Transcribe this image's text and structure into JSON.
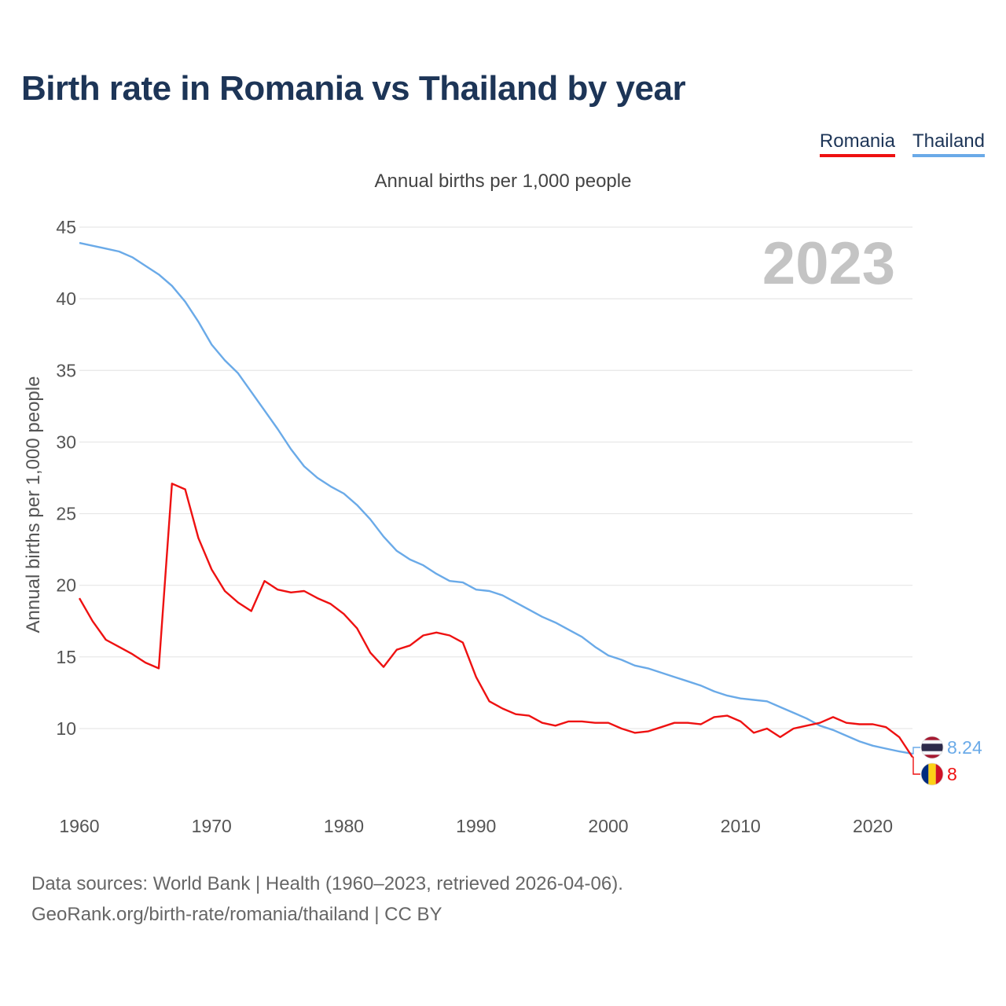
{
  "header": {
    "title": "Birth rate in Romania vs Thailand by year",
    "subtitle": "Annual births per 1,000 people"
  },
  "legend": [
    {
      "label": "Romania",
      "color": "#ee1111"
    },
    {
      "label": "Thailand",
      "color": "#6aaae8"
    }
  ],
  "footer": {
    "sources": "Data sources: World Bank | Health (1960–2023, retrieved 2026-04-06).",
    "credit": "GeoRank.org/birth-rate/romania/thailand | CC BY"
  },
  "chart_data": {
    "type": "line",
    "year_label": "2023",
    "ylabel": "Annual births per 1,000 people",
    "xlabel": "",
    "xlim": [
      1960,
      2023
    ],
    "ylim": [
      5.5,
      45
    ],
    "yticks": [
      10,
      15,
      20,
      25,
      30,
      35,
      40,
      45
    ],
    "xticks": [
      1960,
      1970,
      1980,
      1990,
      2000,
      2010,
      2020
    ],
    "grid": true,
    "x": [
      1960,
      1961,
      1962,
      1963,
      1964,
      1965,
      1966,
      1967,
      1968,
      1969,
      1970,
      1971,
      1972,
      1973,
      1974,
      1975,
      1976,
      1977,
      1978,
      1979,
      1980,
      1981,
      1982,
      1983,
      1984,
      1985,
      1986,
      1987,
      1988,
      1989,
      1990,
      1991,
      1992,
      1993,
      1994,
      1995,
      1996,
      1997,
      1998,
      1999,
      2000,
      2001,
      2002,
      2003,
      2004,
      2005,
      2006,
      2007,
      2008,
      2009,
      2010,
      2011,
      2012,
      2013,
      2014,
      2015,
      2016,
      2017,
      2018,
      2019,
      2020,
      2021,
      2022,
      2023
    ],
    "series": [
      {
        "name": "Romania",
        "color": "#ee1111",
        "end_label": "8",
        "values": [
          19.1,
          17.5,
          16.2,
          15.7,
          15.2,
          14.6,
          14.2,
          27.1,
          26.7,
          23.3,
          21.1,
          19.6,
          18.8,
          18.2,
          20.3,
          19.7,
          19.5,
          19.6,
          19.1,
          18.7,
          18.0,
          17.0,
          15.3,
          14.3,
          15.5,
          15.8,
          16.5,
          16.7,
          16.5,
          16.0,
          13.6,
          11.9,
          11.4,
          11.0,
          10.9,
          10.4,
          10.2,
          10.5,
          10.5,
          10.4,
          10.4,
          10.0,
          9.7,
          9.8,
          10.1,
          10.4,
          10.4,
          10.3,
          10.8,
          10.9,
          10.5,
          9.7,
          10.0,
          9.4,
          10.0,
          10.2,
          10.4,
          10.8,
          10.4,
          10.3,
          10.3,
          10.1,
          9.4,
          8.0
        ]
      },
      {
        "name": "Thailand",
        "color": "#6aaae8",
        "end_label": "8.24",
        "values": [
          43.9,
          43.7,
          43.5,
          43.3,
          42.9,
          42.3,
          41.7,
          40.9,
          39.8,
          38.4,
          36.8,
          35.7,
          34.8,
          33.5,
          32.2,
          30.9,
          29.5,
          28.3,
          27.5,
          26.9,
          26.4,
          25.6,
          24.6,
          23.4,
          22.4,
          21.8,
          21.4,
          20.8,
          20.3,
          20.2,
          19.7,
          19.6,
          19.3,
          18.8,
          18.3,
          17.8,
          17.4,
          16.9,
          16.4,
          15.7,
          15.1,
          14.8,
          14.4,
          14.2,
          13.9,
          13.6,
          13.3,
          13.0,
          12.6,
          12.3,
          12.1,
          12.0,
          11.9,
          11.5,
          11.1,
          10.7,
          10.2,
          9.9,
          9.5,
          9.1,
          8.8,
          8.6,
          8.4,
          8.24
        ]
      }
    ]
  }
}
